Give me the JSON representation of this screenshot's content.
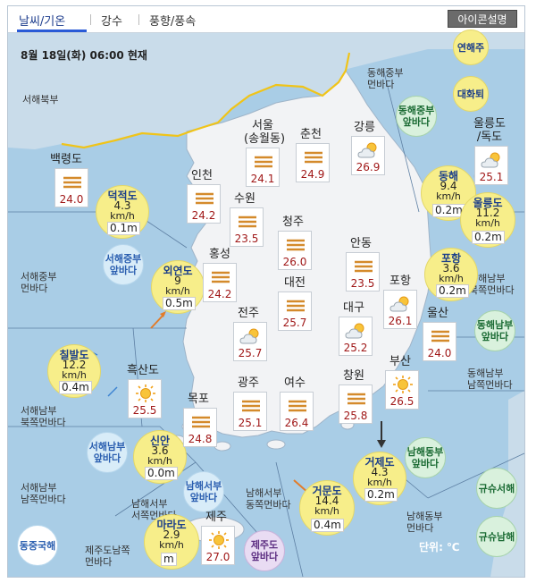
{
  "tabs": [
    {
      "label": "날씨/기온",
      "active": true
    },
    {
      "label": "강수",
      "active": false
    },
    {
      "label": "풍향/풍속",
      "active": false
    }
  ],
  "icon_help_label": "아이콘설명",
  "datetime": "8월 18일(화) 06:00 현재",
  "unit": "단위: ℃",
  "colors": {
    "sea": "#a9cde6",
    "land": "#f1f2f4",
    "coast_line": "#f0c419",
    "circle": "#f7ee8a",
    "temp_text": "#a01818"
  },
  "cities": [
    {
      "name": "백령도",
      "temp": "24.0",
      "icon": "mist-icon"
    },
    {
      "name": "인천",
      "temp": "24.2",
      "icon": "mist-icon"
    },
    {
      "name": "서울\n(송월동)",
      "temp": "24.1",
      "icon": "mist-icon"
    },
    {
      "name": "수원",
      "temp": "23.5",
      "icon": "mist-icon"
    },
    {
      "name": "춘천",
      "temp": "24.9",
      "icon": "mist-icon"
    },
    {
      "name": "강릉",
      "temp": "26.9",
      "icon": "partly-cloudy-icon"
    },
    {
      "name": "청주",
      "temp": "26.0",
      "icon": "mist-icon"
    },
    {
      "name": "안동",
      "temp": "23.5",
      "icon": "mist-icon"
    },
    {
      "name": "홍성",
      "temp": "24.2",
      "icon": "mist-icon"
    },
    {
      "name": "대전",
      "temp": "25.7",
      "icon": "mist-icon"
    },
    {
      "name": "포항",
      "temp": "26.1",
      "icon": "partly-cloudy-icon"
    },
    {
      "name": "전주",
      "temp": "25.7",
      "icon": "partly-cloudy-icon"
    },
    {
      "name": "대구",
      "temp": "25.2",
      "icon": "partly-cloudy-icon"
    },
    {
      "name": "울산",
      "temp": "24.0",
      "icon": "mist-icon"
    },
    {
      "name": "흑산도",
      "temp": "25.5",
      "icon": "sunny-icon"
    },
    {
      "name": "광주",
      "temp": "25.1",
      "icon": "mist-icon"
    },
    {
      "name": "여수",
      "temp": "26.4",
      "icon": "mist-icon"
    },
    {
      "name": "창원",
      "temp": "25.8",
      "icon": "mist-icon"
    },
    {
      "name": "부산",
      "temp": "26.5",
      "icon": "sunny-icon"
    },
    {
      "name": "목포",
      "temp": "24.8",
      "icon": "mist-icon"
    },
    {
      "name": "제주",
      "temp": "27.0",
      "icon": "sunny-icon"
    },
    {
      "name": "울릉도\n/독도",
      "temp": "25.1",
      "icon": "partly-cloudy-icon"
    }
  ],
  "buoys": [
    {
      "name": "덕적도",
      "speed": "4.3",
      "unit": "km/h",
      "wave": "0.1m"
    },
    {
      "name": "외연도",
      "speed": "9",
      "unit": "km/h",
      "wave": "0.5m"
    },
    {
      "name": "칠발도",
      "speed": "12.2",
      "unit": "km/h",
      "wave": "0.4m"
    },
    {
      "name": "신안",
      "speed": "3.6",
      "unit": "km/h",
      "wave": "0.0m"
    },
    {
      "name": "마라도",
      "speed": "2.9",
      "unit": "km/h",
      "wave": "m"
    },
    {
      "name": "거문도",
      "speed": "14.4",
      "unit": "km/h",
      "wave": "0.4m"
    },
    {
      "name": "거제도",
      "speed": "4.3",
      "unit": "km/h",
      "wave": "0.2m"
    },
    {
      "name": "포항",
      "speed": "3.6",
      "unit": "km/h",
      "wave": "0.2m"
    },
    {
      "name": "동해",
      "speed": "9.4",
      "unit": "km/h",
      "wave": "0.2m"
    },
    {
      "name": "울릉도",
      "speed": "11.2",
      "unit": "km/h",
      "wave": "0.2m"
    }
  ],
  "sea_zones": [
    {
      "label": "연해주"
    },
    {
      "label": "대화퇴"
    },
    {
      "label": "동해중부\n앞바다"
    },
    {
      "label": "서해중부\n앞바다"
    },
    {
      "label": "동해남부\n앞바다"
    },
    {
      "label": "서해남부\n앞바다"
    },
    {
      "label": "남해서부\n앞바다"
    },
    {
      "label": "남해동부\n앞바다"
    },
    {
      "label": "제주도\n앞바다"
    },
    {
      "label": "동중국해"
    },
    {
      "label": "규슈서해"
    },
    {
      "label": "규슈남해"
    }
  ],
  "area_labels": [
    {
      "label": "서해북부"
    },
    {
      "label": "동해중부\n먼바다"
    },
    {
      "label": "서해중부\n먼바다"
    },
    {
      "label": "동해남부\n북쪽먼바다"
    },
    {
      "label": "동해남부\n남쪽먼바다"
    },
    {
      "label": "서해남부\n북쪽먼바다"
    },
    {
      "label": "서해남부\n남쪽먼바다"
    },
    {
      "label": "남해서부\n서쪽먼바다"
    },
    {
      "label": "남해서부\n동쪽먼바다"
    },
    {
      "label": "남해동부\n먼바다"
    },
    {
      "label": "제주도남쪽\n먼바다"
    }
  ]
}
